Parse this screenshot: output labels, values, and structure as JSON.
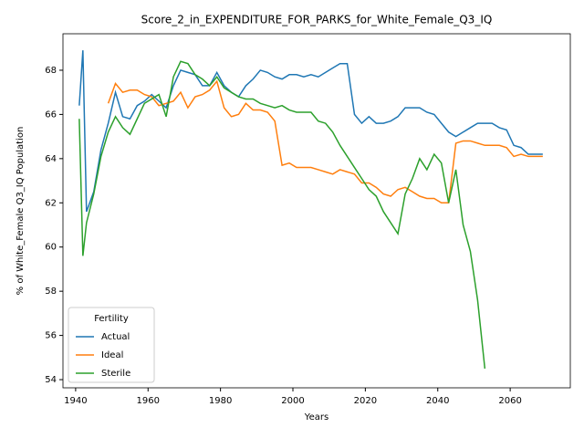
{
  "chart_data": {
    "type": "line",
    "title": "Score_2_in_EXPENDITURE_FOR_PARKS_for_White_Female_Q3_IQ",
    "xlabel": "Years",
    "ylabel": "% of White_Female Q3_IQ Population",
    "x": [
      1941,
      1942,
      1943,
      1945,
      1947,
      1949,
      1951,
      1953,
      1955,
      1957,
      1959,
      1961,
      1963,
      1965,
      1967,
      1969,
      1971,
      1973,
      1975,
      1977,
      1979,
      1981,
      1983,
      1985,
      1987,
      1989,
      1991,
      1993,
      1995,
      1997,
      1999,
      2001,
      2003,
      2005,
      2007,
      2009,
      2011,
      2013,
      2015,
      2017,
      2019,
      2021,
      2023,
      2025,
      2027,
      2029,
      2031,
      2033,
      2035,
      2037,
      2039,
      2041,
      2043,
      2045,
      2047,
      2049,
      2051,
      2053,
      2055,
      2057,
      2059,
      2061,
      2063,
      2065,
      2067,
      2069
    ],
    "series": [
      {
        "name": "Actual",
        "color": "#1f77b4",
        "values": [
          66.4,
          68.9,
          61.6,
          62.5,
          64.4,
          65.6,
          67.0,
          65.9,
          65.8,
          66.4,
          66.6,
          66.9,
          66.6,
          66.3,
          67.3,
          68.0,
          67.9,
          67.8,
          67.3,
          67.3,
          67.9,
          67.3,
          67.0,
          66.8,
          67.3,
          67.6,
          68.0,
          67.9,
          67.7,
          67.6,
          67.8,
          67.8,
          67.7,
          67.8,
          67.7,
          67.9,
          68.1,
          68.3,
          68.3,
          66.0,
          65.6,
          65.9,
          65.6,
          65.6,
          65.7,
          65.9,
          66.3,
          66.3,
          66.3,
          66.1,
          66.0,
          65.6,
          65.2,
          65.0,
          65.2,
          65.4,
          65.6,
          65.6,
          65.6,
          65.4,
          65.3,
          64.6,
          64.5,
          64.2,
          64.2,
          64.2
        ]
      },
      {
        "name": "Ideal",
        "color": "#ff7f0e",
        "values": [
          null,
          null,
          null,
          null,
          null,
          66.5,
          67.4,
          67.0,
          67.1,
          67.1,
          66.9,
          66.8,
          66.4,
          66.5,
          66.6,
          67.0,
          66.3,
          66.8,
          66.9,
          67.1,
          67.5,
          66.3,
          65.9,
          66.0,
          66.5,
          66.2,
          66.2,
          66.1,
          65.7,
          63.7,
          63.8,
          63.6,
          63.6,
          63.6,
          63.5,
          63.4,
          63.3,
          63.5,
          63.4,
          63.3,
          62.9,
          62.9,
          62.7,
          62.4,
          62.3,
          62.6,
          62.7,
          62.5,
          62.3,
          62.2,
          62.2,
          62.0,
          62.0,
          64.7,
          64.8,
          64.8,
          64.7,
          64.6,
          64.6,
          64.6,
          64.5,
          64.1,
          64.2,
          64.1,
          64.1,
          64.1
        ]
      },
      {
        "name": "Sterile",
        "color": "#2ca02c",
        "values": [
          65.8,
          59.6,
          61.1,
          62.4,
          64.1,
          65.2,
          65.9,
          65.4,
          65.1,
          65.8,
          66.5,
          66.7,
          66.9,
          65.9,
          67.7,
          68.4,
          68.3,
          67.8,
          67.6,
          67.3,
          67.7,
          67.2,
          67.0,
          66.8,
          66.7,
          66.7,
          66.5,
          66.4,
          66.3,
          66.4,
          66.2,
          66.1,
          66.1,
          66.1,
          65.7,
          65.6,
          65.2,
          64.6,
          64.1,
          63.6,
          63.1,
          62.6,
          62.3,
          61.6,
          61.1,
          60.6,
          62.4,
          63.1,
          64.0,
          63.5,
          64.2,
          63.8,
          62.0,
          63.5,
          61.0,
          59.8,
          57.6,
          54.5,
          null,
          null,
          null,
          null,
          null,
          null,
          null,
          null
        ]
      }
    ],
    "xlim": [
      1936.5,
      2076.6
    ],
    "xticks": [
      1940,
      1960,
      1980,
      2000,
      2020,
      2040,
      2060
    ],
    "ylim": [
      53.63,
      69.65
    ],
    "yticks": [
      54,
      56,
      58,
      60,
      62,
      64,
      66,
      68
    ],
    "legend_title": "Fertility",
    "legend": "lower left",
    "grid": false
  }
}
